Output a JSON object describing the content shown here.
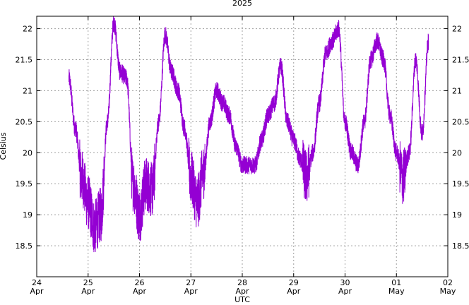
{
  "chart_data": {
    "type": "line",
    "title": "2025",
    "xlabel": "UTC",
    "ylabel": "Celsius",
    "ylim": [
      18.0,
      22.2
    ],
    "xlim": [
      "2025-04-24",
      "2025-05-02"
    ],
    "grid": true,
    "color": "#9400d3",
    "x_ticks": [
      {
        "day": "24",
        "month": "Apr"
      },
      {
        "day": "25",
        "month": "Apr"
      },
      {
        "day": "26",
        "month": "Apr"
      },
      {
        "day": "27",
        "month": "Apr"
      },
      {
        "day": "28",
        "month": "Apr"
      },
      {
        "day": "29",
        "month": "Apr"
      },
      {
        "day": "30",
        "month": "Apr"
      },
      {
        "day": "01",
        "month": "May"
      },
      {
        "day": "02",
        "month": "May"
      }
    ],
    "y_ticks": [
      "18.5",
      "19",
      "19.5",
      "20",
      "20.5",
      "21",
      "21.5",
      "22"
    ],
    "series": [
      {
        "x": [
          "2025-04-24 15:00",
          "2025-04-24 18:00",
          "2025-04-24 21:00",
          "2025-04-25 00:00",
          "2025-04-25 03:00",
          "2025-04-25 06:00",
          "2025-04-25 09:00",
          "2025-04-25 12:00",
          "2025-04-25 15:00",
          "2025-04-25 18:00",
          "2025-04-25 21:00",
          "2025-04-26 00:00",
          "2025-04-26 03:00",
          "2025-04-26 06:00",
          "2025-04-26 09:00",
          "2025-04-26 12:00",
          "2025-04-26 15:00",
          "2025-04-26 18:00",
          "2025-04-26 21:00",
          "2025-04-27 00:00",
          "2025-04-27 03:00",
          "2025-04-27 06:00",
          "2025-04-27 09:00",
          "2025-04-27 12:00",
          "2025-04-27 15:00",
          "2025-04-27 18:00",
          "2025-04-27 21:00",
          "2025-04-28 00:00",
          "2025-04-28 03:00",
          "2025-04-28 06:00",
          "2025-04-28 09:00",
          "2025-04-28 12:00",
          "2025-04-28 15:00",
          "2025-04-28 18:00",
          "2025-04-28 21:00",
          "2025-04-29 00:00",
          "2025-04-29 03:00",
          "2025-04-29 06:00",
          "2025-04-29 09:00",
          "2025-04-29 12:00",
          "2025-04-29 15:00",
          "2025-04-29 18:00",
          "2025-04-29 21:00",
          "2025-04-30 00:00",
          "2025-04-30 03:00",
          "2025-04-30 06:00",
          "2025-04-30 09:00",
          "2025-04-30 12:00",
          "2025-04-30 15:00",
          "2025-04-30 18:00",
          "2025-04-30 21:00",
          "2025-05-01 00:00",
          "2025-05-01 03:00",
          "2025-05-01 06:00",
          "2025-05-01 09:00",
          "2025-05-01 12:00",
          "2025-05-01 15:00"
        ],
        "values": [
          21.2,
          20.4,
          19.6,
          19.2,
          18.8,
          19.0,
          20.5,
          22.1,
          21.3,
          21.2,
          19.5,
          19.0,
          19.5,
          19.4,
          20.5,
          21.9,
          21.3,
          21.0,
          20.4,
          19.6,
          19.2,
          19.7,
          20.5,
          21.0,
          20.8,
          20.6,
          20.1,
          19.8,
          19.8,
          19.8,
          20.2,
          20.6,
          20.8,
          21.4,
          20.5,
          20.2,
          19.9,
          19.6,
          20.0,
          20.8,
          21.6,
          21.8,
          22.0,
          20.5,
          20.0,
          19.8,
          20.5,
          21.5,
          21.8,
          21.5,
          20.6,
          20.0,
          19.6,
          20.0,
          21.5,
          20.3,
          21.8
        ]
      }
    ]
  }
}
